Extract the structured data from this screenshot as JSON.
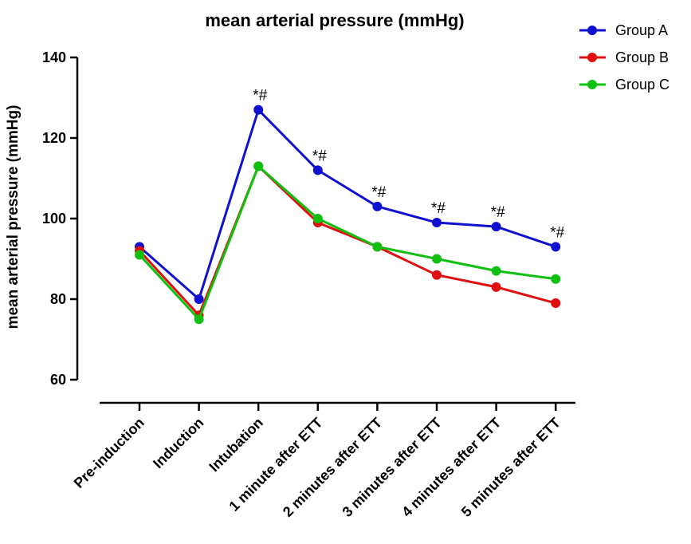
{
  "chart_data": {
    "type": "line",
    "title": "mean arterial pressure (mmHg)",
    "ylabel": "mean arterial pressure (mmHg)",
    "xlabel": "",
    "ylim": [
      60,
      140
    ],
    "yticks": [
      60,
      80,
      100,
      120,
      140
    ],
    "categories": [
      "Pre-induction",
      "Induction",
      "Intubation",
      "1 minute after ETT",
      "2 minutes after ETT",
      "3 minutes after ETT",
      "4 minutes after ETT",
      "5 minutes after ETT"
    ],
    "series": [
      {
        "name": "Group A",
        "color": "#1010d0",
        "values": [
          93,
          80,
          127,
          112,
          103,
          99,
          98,
          93
        ]
      },
      {
        "name": "Group B",
        "color": "#e01010",
        "values": [
          92,
          76,
          113,
          99,
          93,
          86,
          83,
          79
        ]
      },
      {
        "name": "Group C",
        "color": "#10c010",
        "values": [
          91,
          75,
          113,
          100,
          93,
          90,
          87,
          85
        ]
      }
    ],
    "annotations": [
      {
        "category": "Intubation",
        "text": "*#"
      },
      {
        "category": "1 minute after ETT",
        "text": "*#"
      },
      {
        "category": "2 minutes after ETT",
        "text": "*#"
      },
      {
        "category": "3 minutes after ETT",
        "text": "*#"
      },
      {
        "category": "4 minutes after ETT",
        "text": "*#"
      },
      {
        "category": "5 minutes after ETT",
        "text": "*#"
      }
    ],
    "legend": "top-right",
    "grid": false
  }
}
